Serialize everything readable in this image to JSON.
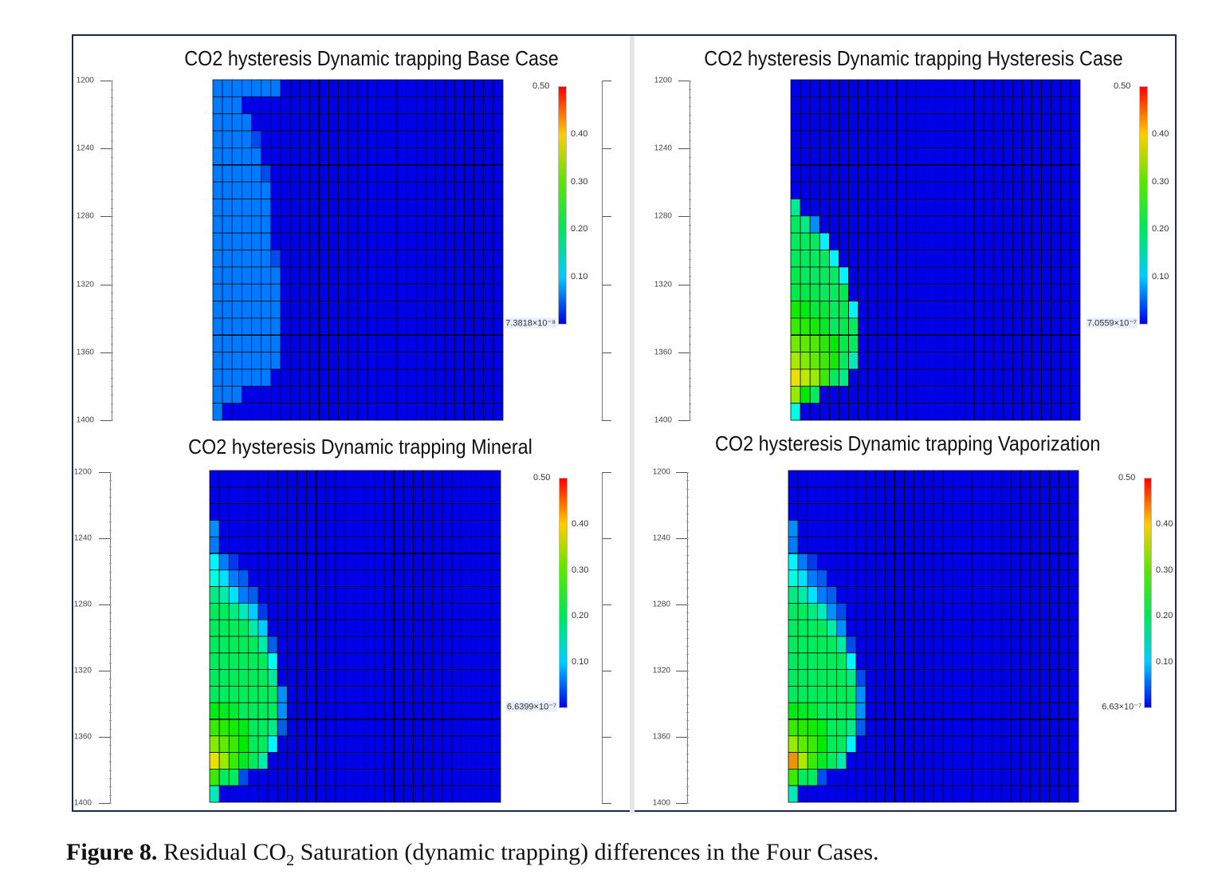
{
  "chart_data": [
    {
      "type": "heatmap",
      "title": "CO2 hysteresis Dynamic trapping Base Case",
      "yticks": [
        "1200",
        "1240",
        "1280",
        "1320",
        "1360",
        "1400"
      ],
      "grid_rows": 20,
      "grid_cols": 30,
      "colorbar": {
        "max_label": "0.50",
        "ticks": [
          "0.40",
          "0.30",
          "0.20",
          "0.10"
        ],
        "tick_values": [
          0.4,
          0.3,
          0.2,
          0.1
        ],
        "min_label": "7.3818×10⁻⁸",
        "range": [
          0,
          0.5
        ]
      },
      "background_value": 0,
      "plume_rows": [
        [
          0.06,
          0.06,
          0.06,
          0.06,
          0.06,
          0.06,
          0.06
        ],
        [
          0.06,
          0.06,
          0.06
        ],
        [
          0.06,
          0.06,
          0.06,
          0.06
        ],
        [
          0.06,
          0.06,
          0.06,
          0.06,
          0.04
        ],
        [
          0.06,
          0.06,
          0.06,
          0.06,
          0.06
        ],
        [
          0.06,
          0.06,
          0.06,
          0.06,
          0.06,
          0.04
        ],
        [
          0.06,
          0.06,
          0.06,
          0.06,
          0.06,
          0.06
        ],
        [
          0.06,
          0.06,
          0.06,
          0.06,
          0.06,
          0.06
        ],
        [
          0.06,
          0.06,
          0.06,
          0.06,
          0.06,
          0.06
        ],
        [
          0.06,
          0.06,
          0.06,
          0.06,
          0.06,
          0.06
        ],
        [
          0.06,
          0.06,
          0.06,
          0.06,
          0.06,
          0.06,
          0.04
        ],
        [
          0.06,
          0.06,
          0.06,
          0.06,
          0.06,
          0.06,
          0.06
        ],
        [
          0.06,
          0.06,
          0.06,
          0.06,
          0.06,
          0.06,
          0.06
        ],
        [
          0.06,
          0.06,
          0.06,
          0.06,
          0.06,
          0.06,
          0.06
        ],
        [
          0.06,
          0.06,
          0.06,
          0.06,
          0.06,
          0.06,
          0.06
        ],
        [
          0.06,
          0.06,
          0.06,
          0.06,
          0.06,
          0.06,
          0.06
        ],
        [
          0.06,
          0.06,
          0.06,
          0.06,
          0.06,
          0.06,
          0.06
        ],
        [
          0.06,
          0.06,
          0.06,
          0.06,
          0.06,
          0.06
        ],
        [
          0.06,
          0.06,
          0.06
        ],
        [
          0.06
        ]
      ]
    },
    {
      "type": "heatmap",
      "title": "CO2 hysteresis Dynamic trapping Hysteresis Case",
      "yticks": [
        "1200",
        "1240",
        "1280",
        "1320",
        "1360",
        "1400"
      ],
      "grid_rows": 20,
      "grid_cols": 30,
      "colorbar": {
        "max_label": "0.50",
        "ticks": [
          "0.40",
          "0.30",
          "0.20",
          "0.10"
        ],
        "tick_values": [
          0.4,
          0.3,
          0.2,
          0.1
        ],
        "min_label": "7.0559×10⁻⁷",
        "range": [
          0,
          0.5
        ]
      },
      "background_value": 0,
      "plume_rows": [
        [],
        [],
        [],
        [],
        [],
        [],
        [],
        [
          0.17
        ],
        [
          0.2,
          0.18,
          0.07
        ],
        [
          0.2,
          0.2,
          0.2,
          0.12
        ],
        [
          0.2,
          0.2,
          0.2,
          0.2,
          0.12
        ],
        [
          0.21,
          0.2,
          0.2,
          0.2,
          0.2,
          0.12
        ],
        [
          0.21,
          0.21,
          0.21,
          0.2,
          0.2,
          0.21
        ],
        [
          0.26,
          0.24,
          0.22,
          0.22,
          0.2,
          0.21,
          0.12
        ],
        [
          0.28,
          0.27,
          0.26,
          0.23,
          0.2,
          0.21,
          0.2
        ],
        [
          0.31,
          0.3,
          0.29,
          0.27,
          0.25,
          0.21,
          0.2
        ],
        [
          0.34,
          0.32,
          0.3,
          0.28,
          0.26,
          0.2,
          0.15
        ],
        [
          0.38,
          0.35,
          0.33,
          0.28,
          0.2,
          0.18
        ],
        [
          0.33,
          0.25,
          0.2
        ],
        [
          0.14
        ]
      ]
    },
    {
      "type": "heatmap",
      "title": "CO2 hysteresis Dynamic trapping Mineral",
      "yticks": [
        "1200",
        "1240",
        "1280",
        "1320",
        "1360",
        "1400"
      ],
      "grid_rows": 20,
      "grid_cols": 30,
      "colorbar": {
        "max_label": "0.50",
        "ticks": [
          "0.40",
          "0.30",
          "0.20",
          "0.10"
        ],
        "tick_values": [
          0.4,
          0.3,
          0.2,
          0.1
        ],
        "min_label": "6.6399×10⁻⁷",
        "range": [
          0,
          0.5
        ]
      },
      "background_value": 0,
      "plume_rows": [
        [],
        [],
        [],
        [
          0.07
        ],
        [
          0.06
        ],
        [
          0.12,
          0.06,
          0.03
        ],
        [
          0.14,
          0.11,
          0.06,
          0.05
        ],
        [
          0.18,
          0.16,
          0.11,
          0.06,
          0.05
        ],
        [
          0.2,
          0.2,
          0.18,
          0.15,
          0.1,
          0.03
        ],
        [
          0.2,
          0.2,
          0.2,
          0.2,
          0.16,
          0.1
        ],
        [
          0.2,
          0.2,
          0.2,
          0.2,
          0.2,
          0.16,
          0.05
        ],
        [
          0.2,
          0.2,
          0.2,
          0.2,
          0.2,
          0.2,
          0.13
        ],
        [
          0.2,
          0.2,
          0.2,
          0.2,
          0.2,
          0.2,
          0.17
        ],
        [
          0.2,
          0.2,
          0.2,
          0.2,
          0.2,
          0.2,
          0.2,
          0.07
        ],
        [
          0.24,
          0.23,
          0.22,
          0.2,
          0.2,
          0.2,
          0.2,
          0.07
        ],
        [
          0.28,
          0.27,
          0.26,
          0.24,
          0.2,
          0.2,
          0.18,
          0.05
        ],
        [
          0.32,
          0.3,
          0.28,
          0.25,
          0.2,
          0.2,
          0.12
        ],
        [
          0.38,
          0.33,
          0.28,
          0.23,
          0.2,
          0.16
        ],
        [
          0.28,
          0.2,
          0.2,
          0.04
        ],
        [
          0.15
        ]
      ]
    },
    {
      "type": "heatmap",
      "title": "CO2 hysteresis Dynamic trapping Vaporization",
      "yticks": [
        "1200",
        "1240",
        "1280",
        "1320",
        "1360",
        "1400"
      ],
      "grid_rows": 20,
      "grid_cols": 30,
      "colorbar": {
        "max_label": "0.50",
        "ticks": [
          "0.40",
          "0.30",
          "0.20",
          "0.10"
        ],
        "tick_values": [
          0.4,
          0.3,
          0.2,
          0.1
        ],
        "min_label": "6.63×10⁻⁷",
        "range": [
          0,
          0.5
        ]
      },
      "background_value": 0,
      "plume_rows": [
        [],
        [],
        [],
        [
          0.07
        ],
        [
          0.06
        ],
        [
          0.12,
          0.06,
          0.03
        ],
        [
          0.14,
          0.11,
          0.06,
          0.05
        ],
        [
          0.18,
          0.16,
          0.11,
          0.06,
          0.05
        ],
        [
          0.2,
          0.2,
          0.18,
          0.15,
          0.07,
          0.04
        ],
        [
          0.2,
          0.2,
          0.2,
          0.2,
          0.16,
          0.07
        ],
        [
          0.2,
          0.2,
          0.2,
          0.2,
          0.2,
          0.16,
          0.04
        ],
        [
          0.2,
          0.2,
          0.2,
          0.2,
          0.2,
          0.2,
          0.12
        ],
        [
          0.2,
          0.2,
          0.2,
          0.2,
          0.2,
          0.2,
          0.18,
          0.04
        ],
        [
          0.2,
          0.2,
          0.2,
          0.2,
          0.2,
          0.2,
          0.2,
          0.07
        ],
        [
          0.24,
          0.23,
          0.22,
          0.2,
          0.2,
          0.2,
          0.2,
          0.07
        ],
        [
          0.28,
          0.27,
          0.26,
          0.24,
          0.2,
          0.2,
          0.18,
          0.05
        ],
        [
          0.33,
          0.3,
          0.28,
          0.25,
          0.2,
          0.2,
          0.12
        ],
        [
          0.42,
          0.34,
          0.28,
          0.23,
          0.2,
          0.16
        ],
        [
          0.28,
          0.2,
          0.2,
          0.04
        ],
        [
          0.15
        ]
      ]
    }
  ],
  "caption": {
    "label": "Figure 8.",
    "text_pre": "Residual CO",
    "subscript": "2",
    "text_post": " Saturation (dynamic trapping) differences in the Four Cases."
  }
}
